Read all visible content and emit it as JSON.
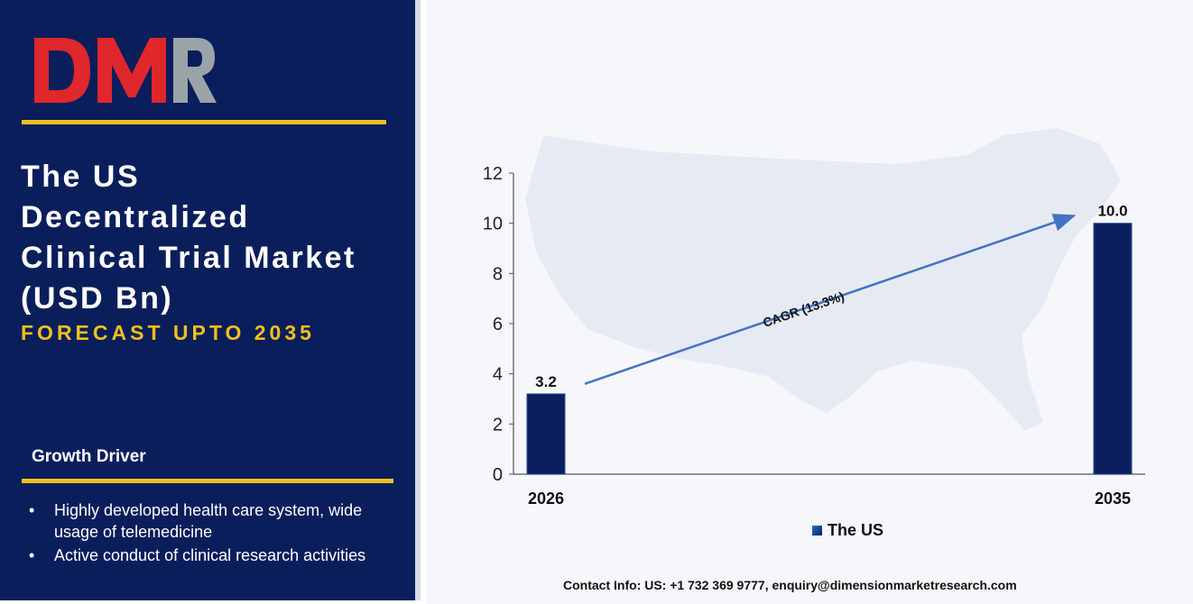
{
  "brand": {
    "logo_text": "DMR",
    "colors": {
      "red": "#e0272c",
      "grey": "#9aa3a8",
      "gold": "#f2c01b",
      "navy": "#0b1e5c"
    }
  },
  "header": {
    "title_lines": [
      "The US",
      "Decentralized",
      "Clinical Trial Market",
      "(USD Bn)"
    ],
    "subtitle": "FORECAST UPTO 2035"
  },
  "growth_driver": {
    "heading": "Growth Driver",
    "items": [
      "Highly developed health care system, wide usage of telemedicine",
      "Active conduct of clinical research activities"
    ]
  },
  "chart_data": {
    "type": "bar",
    "categories": [
      "2026",
      "2035"
    ],
    "series": [
      {
        "name": "The US",
        "values": [
          3.2,
          10.0
        ]
      }
    ],
    "value_labels": [
      "3.2",
      "10.0"
    ],
    "ylim": [
      0,
      12
    ],
    "yticks": [
      "0",
      "2",
      "4",
      "6",
      "8",
      "10",
      "12"
    ],
    "annotation": "CAGR (13.3%)",
    "grid": false,
    "legend": "bottom-center",
    "bar_color": "#0b1e5c"
  },
  "footer": {
    "contact": "Contact Info: US: +1 732 369 9777, enquiry@dimensionmarketresearch.com"
  }
}
